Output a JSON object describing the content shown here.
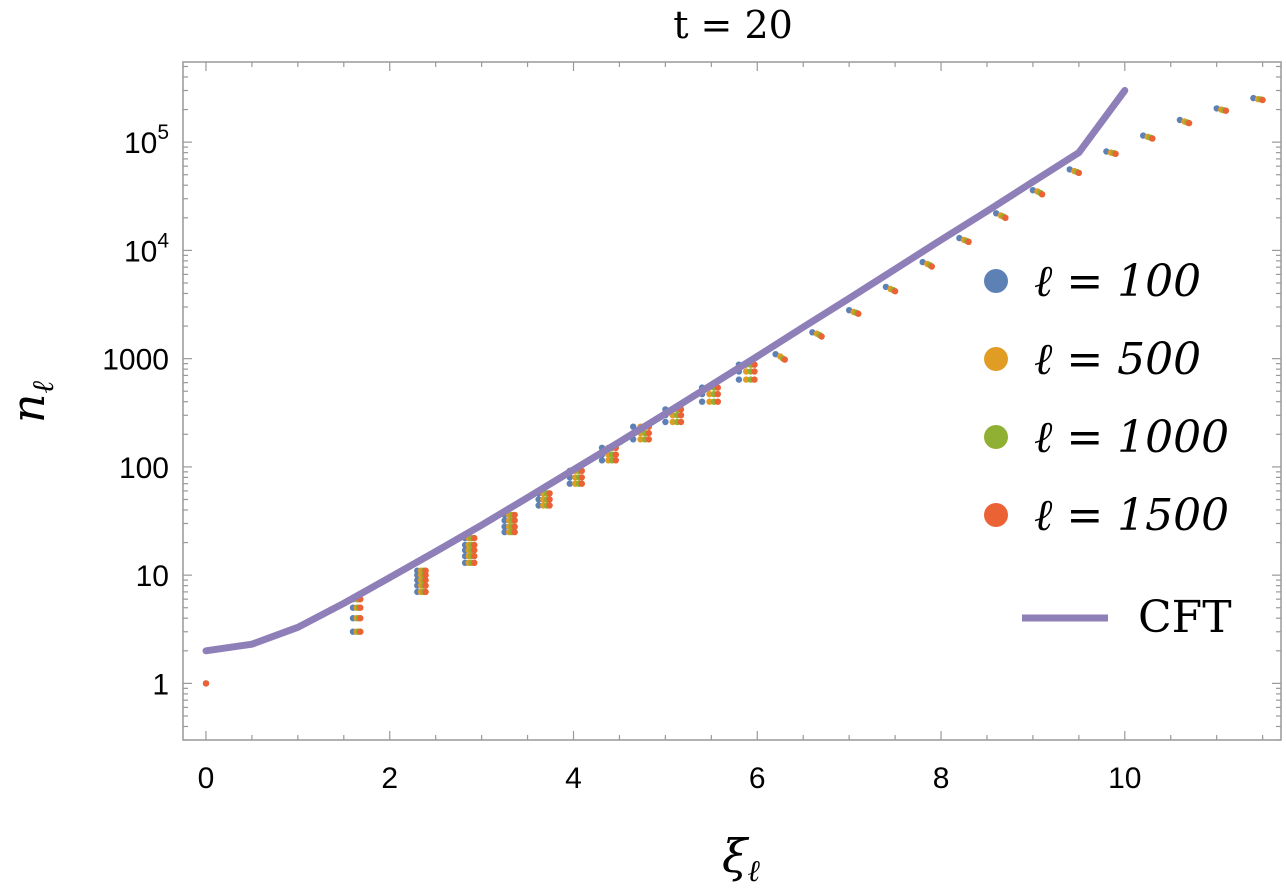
{
  "chart_data": {
    "type": "scatter",
    "title": "t = 20",
    "xlabel": "ξ",
    "xlabel_sub": "ℓ",
    "ylabel": "n",
    "ylabel_sub": "ℓ",
    "yscale": "log",
    "xlim": [
      -0.25,
      11.7
    ],
    "ylim": [
      0.3,
      550000
    ],
    "x_ticks": [
      {
        "value": 0,
        "label": "0"
      },
      {
        "value": 2,
        "label": "2"
      },
      {
        "value": 4,
        "label": "4"
      },
      {
        "value": 6,
        "label": "6"
      },
      {
        "value": 8,
        "label": "8"
      },
      {
        "value": 10,
        "label": "10"
      }
    ],
    "y_ticks": [
      {
        "value": 1,
        "label": "1"
      },
      {
        "value": 10,
        "label": "10"
      },
      {
        "value": 100,
        "label": "100"
      },
      {
        "value": 1000,
        "label": "1000"
      },
      {
        "value": 10000,
        "base": "10",
        "exp": "4"
      },
      {
        "value": 100000,
        "base": "10",
        "exp": "5"
      }
    ],
    "grid": false,
    "legend_position": "right",
    "series": [
      {
        "name": "ℓ = 100",
        "color": "#5e81b5",
        "marker": "point",
        "points": [
          [
            0.0,
            1
          ],
          [
            1.6,
            3
          ],
          [
            1.6,
            4
          ],
          [
            1.6,
            5
          ],
          [
            1.6,
            6
          ],
          [
            2.3,
            7
          ],
          [
            2.3,
            8
          ],
          [
            2.3,
            9
          ],
          [
            2.3,
            10
          ],
          [
            2.3,
            11
          ],
          [
            2.82,
            13
          ],
          [
            2.82,
            15
          ],
          [
            2.82,
            17
          ],
          [
            2.82,
            19
          ],
          [
            2.82,
            22
          ],
          [
            3.25,
            25
          ],
          [
            3.25,
            28
          ],
          [
            3.25,
            32
          ],
          [
            3.25,
            36
          ],
          [
            3.62,
            44
          ],
          [
            3.62,
            50
          ],
          [
            3.62,
            57
          ],
          [
            3.96,
            70
          ],
          [
            3.96,
            80
          ],
          [
            3.96,
            92
          ],
          [
            4.31,
            115
          ],
          [
            4.31,
            130
          ],
          [
            4.31,
            150
          ],
          [
            4.65,
            180
          ],
          [
            4.65,
            205
          ],
          [
            4.65,
            235
          ],
          [
            5.0,
            260
          ],
          [
            5.0,
            300
          ],
          [
            5.0,
            340
          ],
          [
            5.4,
            400
          ],
          [
            5.4,
            470
          ],
          [
            5.4,
            540
          ],
          [
            5.8,
            640
          ],
          [
            5.8,
            760
          ],
          [
            5.8,
            880
          ],
          [
            6.2,
            1100
          ],
          [
            6.6,
            1750
          ],
          [
            7.0,
            2800
          ],
          [
            7.4,
            4600
          ],
          [
            7.8,
            7800
          ],
          [
            8.2,
            13000
          ],
          [
            8.6,
            22000
          ],
          [
            9.0,
            36000
          ],
          [
            9.4,
            56000
          ],
          [
            9.8,
            82000
          ],
          [
            10.2,
            115000
          ],
          [
            10.6,
            160000
          ],
          [
            11.0,
            205000
          ],
          [
            11.4,
            255000
          ]
        ]
      },
      {
        "name": "ℓ = 500",
        "color": "#e19c24",
        "marker": "point",
        "points": [
          [
            1.64,
            3
          ],
          [
            1.64,
            4
          ],
          [
            1.64,
            5
          ],
          [
            1.64,
            6
          ],
          [
            2.34,
            7
          ],
          [
            2.34,
            8
          ],
          [
            2.34,
            9
          ],
          [
            2.34,
            10
          ],
          [
            2.34,
            11
          ],
          [
            2.86,
            13
          ],
          [
            2.86,
            15
          ],
          [
            2.86,
            17
          ],
          [
            2.86,
            19
          ],
          [
            2.86,
            22
          ],
          [
            3.3,
            25
          ],
          [
            3.3,
            28
          ],
          [
            3.3,
            32
          ],
          [
            3.3,
            36
          ],
          [
            3.67,
            44
          ],
          [
            3.67,
            50
          ],
          [
            3.67,
            57
          ],
          [
            4.02,
            70
          ],
          [
            4.02,
            80
          ],
          [
            4.02,
            92
          ],
          [
            4.38,
            115
          ],
          [
            4.38,
            130
          ],
          [
            4.38,
            150
          ],
          [
            4.73,
            180
          ],
          [
            4.73,
            205
          ],
          [
            4.73,
            235
          ],
          [
            5.08,
            260
          ],
          [
            5.08,
            300
          ],
          [
            5.08,
            340
          ],
          [
            5.48,
            400
          ],
          [
            5.48,
            470
          ],
          [
            5.48,
            540
          ],
          [
            5.88,
            640
          ],
          [
            5.88,
            760
          ],
          [
            5.88,
            880
          ],
          [
            6.25,
            1050
          ],
          [
            6.65,
            1700
          ],
          [
            7.05,
            2700
          ],
          [
            7.45,
            4400
          ],
          [
            7.85,
            7500
          ],
          [
            8.25,
            12500
          ],
          [
            8.65,
            21000
          ],
          [
            9.05,
            35000
          ],
          [
            9.45,
            54000
          ],
          [
            9.85,
            80000
          ],
          [
            10.25,
            112000
          ],
          [
            10.65,
            155000
          ],
          [
            11.05,
            200000
          ],
          [
            11.45,
            250000
          ]
        ]
      },
      {
        "name": "ℓ = 1000",
        "color": "#8fb032",
        "marker": "point",
        "points": [
          [
            1.66,
            3
          ],
          [
            1.66,
            4
          ],
          [
            1.66,
            5
          ],
          [
            1.66,
            6
          ],
          [
            2.37,
            7
          ],
          [
            2.37,
            8
          ],
          [
            2.37,
            9
          ],
          [
            2.37,
            10
          ],
          [
            2.37,
            11
          ],
          [
            2.89,
            13
          ],
          [
            2.89,
            15
          ],
          [
            2.89,
            17
          ],
          [
            2.89,
            19
          ],
          [
            2.89,
            22
          ],
          [
            3.33,
            25
          ],
          [
            3.33,
            28
          ],
          [
            3.33,
            32
          ],
          [
            3.33,
            36
          ],
          [
            3.71,
            44
          ],
          [
            3.71,
            50
          ],
          [
            3.71,
            57
          ],
          [
            4.06,
            70
          ],
          [
            4.06,
            80
          ],
          [
            4.06,
            92
          ],
          [
            4.42,
            115
          ],
          [
            4.42,
            130
          ],
          [
            4.42,
            150
          ],
          [
            4.78,
            180
          ],
          [
            4.78,
            205
          ],
          [
            4.78,
            235
          ],
          [
            5.13,
            260
          ],
          [
            5.13,
            300
          ],
          [
            5.13,
            340
          ],
          [
            5.53,
            400
          ],
          [
            5.53,
            470
          ],
          [
            5.53,
            540
          ],
          [
            5.93,
            640
          ],
          [
            5.93,
            760
          ],
          [
            5.93,
            880
          ],
          [
            6.28,
            1000
          ],
          [
            6.68,
            1650
          ],
          [
            7.08,
            2650
          ],
          [
            7.48,
            4300
          ],
          [
            7.88,
            7300
          ],
          [
            8.28,
            12200
          ],
          [
            8.68,
            20500
          ],
          [
            9.08,
            34000
          ],
          [
            9.48,
            53000
          ],
          [
            9.88,
            79000
          ],
          [
            10.28,
            110000
          ],
          [
            10.68,
            152000
          ],
          [
            11.08,
            197000
          ],
          [
            11.48,
            248000
          ]
        ]
      },
      {
        "name": "ℓ = 1500",
        "color": "#eb6235",
        "marker": "point",
        "points": [
          [
            0.0,
            1
          ],
          [
            1.68,
            3
          ],
          [
            1.68,
            4
          ],
          [
            1.68,
            5
          ],
          [
            1.68,
            6
          ],
          [
            2.39,
            7
          ],
          [
            2.39,
            8
          ],
          [
            2.39,
            9
          ],
          [
            2.39,
            10
          ],
          [
            2.39,
            11
          ],
          [
            2.92,
            13
          ],
          [
            2.92,
            15
          ],
          [
            2.92,
            17
          ],
          [
            2.92,
            19
          ],
          [
            2.92,
            22
          ],
          [
            3.36,
            25
          ],
          [
            3.36,
            28
          ],
          [
            3.36,
            32
          ],
          [
            3.36,
            36
          ],
          [
            3.74,
            44
          ],
          [
            3.74,
            50
          ],
          [
            3.74,
            57
          ],
          [
            4.09,
            70
          ],
          [
            4.09,
            80
          ],
          [
            4.09,
            92
          ],
          [
            4.46,
            115
          ],
          [
            4.46,
            130
          ],
          [
            4.46,
            150
          ],
          [
            4.82,
            180
          ],
          [
            4.82,
            205
          ],
          [
            4.82,
            235
          ],
          [
            5.17,
            260
          ],
          [
            5.17,
            300
          ],
          [
            5.17,
            340
          ],
          [
            5.57,
            400
          ],
          [
            5.57,
            470
          ],
          [
            5.57,
            540
          ],
          [
            5.97,
            640
          ],
          [
            5.97,
            760
          ],
          [
            5.97,
            880
          ],
          [
            6.3,
            980
          ],
          [
            6.7,
            1600
          ],
          [
            7.1,
            2600
          ],
          [
            7.5,
            4200
          ],
          [
            7.9,
            7100
          ],
          [
            8.3,
            12000
          ],
          [
            8.7,
            20000
          ],
          [
            9.1,
            33000
          ],
          [
            9.5,
            52000
          ],
          [
            9.9,
            78000
          ],
          [
            10.3,
            108000
          ],
          [
            10.7,
            150000
          ],
          [
            11.1,
            195000
          ],
          [
            11.5,
            245000
          ]
        ]
      },
      {
        "name": "CFT",
        "color": "#8f7fb8",
        "marker": "line",
        "points": [
          [
            0,
            2
          ],
          [
            0.5,
            2.3
          ],
          [
            1.0,
            3.3
          ],
          [
            1.5,
            5.5
          ],
          [
            2.0,
            9.5
          ],
          [
            2.5,
            16.5
          ],
          [
            3.0,
            29
          ],
          [
            3.5,
            52
          ],
          [
            4.0,
            94
          ],
          [
            4.5,
            170
          ],
          [
            5.0,
            310
          ],
          [
            5.5,
            570
          ],
          [
            6.0,
            1050
          ],
          [
            6.5,
            1950
          ],
          [
            7.0,
            3600
          ],
          [
            7.5,
            6700
          ],
          [
            8.0,
            12500
          ],
          [
            8.5,
            23000
          ],
          [
            9.0,
            43000
          ],
          [
            9.5,
            80000
          ],
          [
            10.0,
            300000
          ]
        ]
      }
    ]
  }
}
